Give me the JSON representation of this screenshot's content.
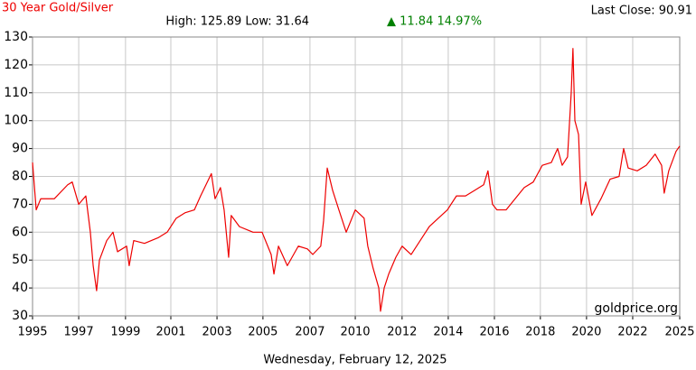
{
  "chart_data": {
    "type": "line",
    "title": "30 Year Gold/Silver",
    "last_close": "Last Close: 90.91",
    "subtitle": "High: 125.89 Low: 31.64",
    "change": "▲ 11.84 14.97%",
    "footer": "Wednesday, February 12, 2025",
    "watermark": "goldprice.org",
    "grid": true,
    "xlim": [
      1995.1,
      2025.1
    ],
    "ylim": [
      30,
      130
    ],
    "yticks": [
      30,
      40,
      50,
      60,
      70,
      80,
      90,
      100,
      110,
      120,
      130
    ],
    "xticks": [
      {
        "value": 1995.1,
        "label": "1995"
      },
      {
        "value": 1997.24,
        "label": "1997"
      },
      {
        "value": 1999.41,
        "label": "1999"
      },
      {
        "value": 2001.51,
        "label": "2001"
      },
      {
        "value": 2003.65,
        "label": "2003"
      },
      {
        "value": 2005.78,
        "label": "2005"
      },
      {
        "value": 2007.96,
        "label": "2007"
      },
      {
        "value": 2010.06,
        "label": "2010"
      },
      {
        "value": 2012.23,
        "label": "2012"
      },
      {
        "value": 2014.37,
        "label": "2014"
      },
      {
        "value": 2016.51,
        "label": "2016"
      },
      {
        "value": 2018.64,
        "label": "2018"
      },
      {
        "value": 2020.78,
        "label": "2020"
      },
      {
        "value": 2022.92,
        "label": "2022"
      },
      {
        "value": 2025.1,
        "label": "2025"
      }
    ],
    "series": [
      {
        "name": "Gold/Silver",
        "color": "#ee0000",
        "x": [
          1995.1,
          1995.27,
          1995.48,
          1996.11,
          1996.73,
          1996.94,
          1997.24,
          1997.57,
          1997.78,
          1997.91,
          1998.07,
          1998.2,
          1998.54,
          1998.83,
          1999.04,
          1999.46,
          1999.58,
          1999.79,
          2000.29,
          2000.92,
          2001.34,
          2001.76,
          2002.18,
          2002.6,
          2002.89,
          2003.14,
          2003.39,
          2003.56,
          2003.81,
          2003.98,
          2004.19,
          2004.31,
          2004.69,
          2005.32,
          2005.74,
          2006.16,
          2006.29,
          2006.5,
          2006.91,
          2007.42,
          2007.84,
          2008.09,
          2008.46,
          2008.59,
          2008.76,
          2009.01,
          2009.3,
          2009.64,
          2010.06,
          2010.47,
          2010.64,
          2010.89,
          2011.15,
          2011.23,
          2011.4,
          2011.61,
          2011.94,
          2012.23,
          2012.65,
          2013.07,
          2013.49,
          2013.91,
          2014.33,
          2014.75,
          2015.17,
          2015.59,
          2016.01,
          2016.21,
          2016.42,
          2016.63,
          2017.05,
          2017.47,
          2017.89,
          2018.31,
          2018.73,
          2019.15,
          2019.44,
          2019.65,
          2019.9,
          2020.07,
          2020.15,
          2020.24,
          2020.41,
          2020.53,
          2020.74,
          2021.03,
          2021.45,
          2021.87,
          2022.29,
          2022.5,
          2022.71,
          2023.13,
          2023.55,
          2023.96,
          2024.26,
          2024.38,
          2024.59,
          2024.93,
          2025.1
        ],
        "values": [
          85,
          68,
          72,
          72,
          77,
          78,
          70,
          73,
          60,
          48,
          39,
          50,
          57,
          60,
          53,
          55,
          48,
          57,
          56,
          58,
          60,
          65,
          67,
          68,
          73,
          77,
          81,
          72,
          76,
          68,
          51,
          66,
          62,
          60,
          60,
          52,
          45,
          55,
          48,
          55,
          54,
          52,
          55,
          64,
          83,
          75,
          68,
          60,
          68,
          65,
          55,
          47,
          40,
          31.64,
          40,
          45,
          51,
          55,
          52,
          57,
          62,
          65,
          68,
          73,
          73,
          75,
          77,
          82,
          70,
          68,
          68,
          72,
          76,
          78,
          84,
          85,
          90,
          84,
          87,
          110,
          125.89,
          100,
          95,
          70,
          78,
          66,
          72,
          79,
          80,
          90,
          83,
          82,
          84,
          88,
          84,
          74,
          82,
          89,
          90.91
        ]
      }
    ]
  }
}
